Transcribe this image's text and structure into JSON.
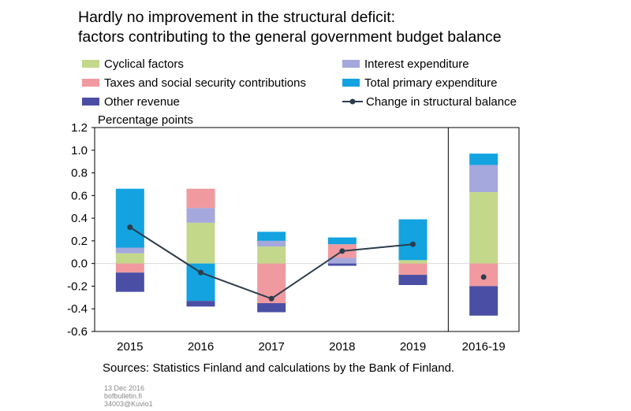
{
  "title_line1": "Hardly no improvement in the structural deficit:",
  "title_line2": "factors contributing to the general government budget balance",
  "y_axis_label": "Percentage points",
  "source": "Sources: Statistics Finland and calculations by the Bank of Finland.",
  "meta": [
    "13 Dec 2016",
    "bofbulletin.fi",
    "34003@Kuvio1"
  ],
  "legend": [
    {
      "label": "Cyclical factors",
      "color": "#c4d88b",
      "kind": "box"
    },
    {
      "label": "Interest expenditure",
      "color": "#a5a8dc",
      "kind": "box"
    },
    {
      "label": "Taxes and social security contributions",
      "color": "#f09aa0",
      "kind": "box"
    },
    {
      "label": "Total primary expenditure",
      "color": "#12a3e0",
      "kind": "box"
    },
    {
      "label": "Other revenue",
      "color": "#4a4fa5",
      "kind": "box"
    },
    {
      "label": "Change in structural balance",
      "color": "#2d3d4c",
      "kind": "line"
    }
  ],
  "chart_data": {
    "type": "bar",
    "stacked": true,
    "categories": [
      "2015",
      "2016",
      "2017",
      "2018",
      "2019",
      "2016-19"
    ],
    "ylim": [
      -0.6,
      1.2
    ],
    "yticks": [
      "1.2",
      "1.0",
      "0.8",
      "0.6",
      "0.4",
      "0.2",
      "0.0",
      "-0.2",
      "-0.4",
      "-0.6"
    ],
    "series": [
      {
        "name": "Cyclical factors",
        "color": "#c4d88b",
        "values": [
          0.09,
          0.36,
          0.15,
          0.0,
          0.03,
          0.63
        ]
      },
      {
        "name": "Interest expenditure",
        "color": "#a5a8dc",
        "values": [
          0.05,
          0.13,
          0.05,
          0.05,
          0.0,
          0.24
        ]
      },
      {
        "name": "Taxes and social security contributions",
        "color": "#f09aa0",
        "values": [
          -0.08,
          0.17,
          -0.35,
          0.12,
          -0.1,
          -0.2
        ]
      },
      {
        "name": "Total primary expenditure",
        "color": "#12a3e0",
        "values": [
          0.52,
          -0.33,
          0.08,
          0.06,
          0.36,
          0.1
        ]
      },
      {
        "name": "Other revenue",
        "color": "#4a4fa5",
        "values": [
          -0.17,
          -0.05,
          -0.08,
          -0.02,
          -0.09,
          -0.26
        ]
      }
    ],
    "line": {
      "name": "Change in structural balance",
      "color": "#2d3d4c",
      "values": [
        0.32,
        -0.08,
        -0.31,
        0.11,
        0.17,
        -0.12
      ]
    },
    "separator_before_index": 5
  }
}
